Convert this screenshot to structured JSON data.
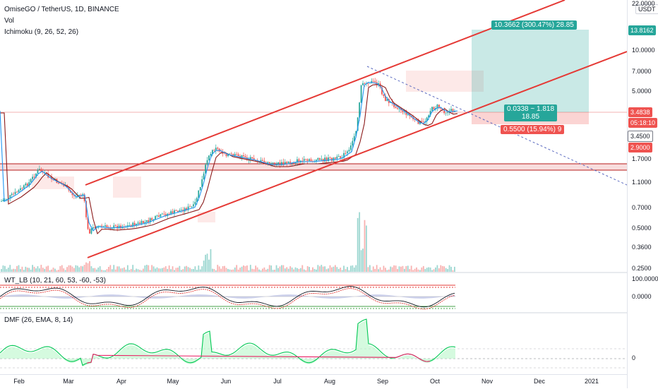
{
  "legend": {
    "symbol": "OmiseGO / TetherUS, 1D, BINANCE",
    "volume": "Vol",
    "ichimoku": "Ichimoku (9, 26, 52, 26)",
    "wt": "WT_LB (10, 21, 60, 53, -60, -53)",
    "dmf": "DMF (26, EMA, 8, 14)"
  },
  "price_axis": {
    "currency": "USDT",
    "ticks": [
      "22.0000",
      "10.0000",
      "7.0000",
      "5.0000",
      "1.7000",
      "1.1000",
      "0.7000",
      "0.5000",
      "0.3600",
      "0.2500"
    ],
    "tag_target": "13.8162",
    "tag_last": "3.4838",
    "tag_countdown": "05:18:10",
    "tag_entry": "3.4500",
    "tag_stop": "2.9000"
  },
  "wt_axis": {
    "ticks": [
      "100.0000",
      "0.0000"
    ]
  },
  "dmf_axis": {
    "ticks": [
      "0"
    ]
  },
  "time_axis": {
    "ticks": [
      "Feb",
      "Mar",
      "Apr",
      "May",
      "Jun",
      "Jul",
      "Aug",
      "Sep",
      "Oct",
      "Nov",
      "Dec",
      "2021"
    ]
  },
  "position": {
    "target_label": "10.3662 (300.47%) 28.85",
    "ratio_line1": "0.0338 ~ 1.818",
    "ratio_line2": "18.85",
    "stop_label": "0.5500 (15.94%) 9"
  },
  "colors": {
    "up": "#26a69a",
    "down": "#ef5350",
    "channel": "#e53935",
    "kijun": "#8b1a1a",
    "tenkan": "#2196f3",
    "target_zone": "#26a69a",
    "stop_zone": "#ef5350"
  }
}
